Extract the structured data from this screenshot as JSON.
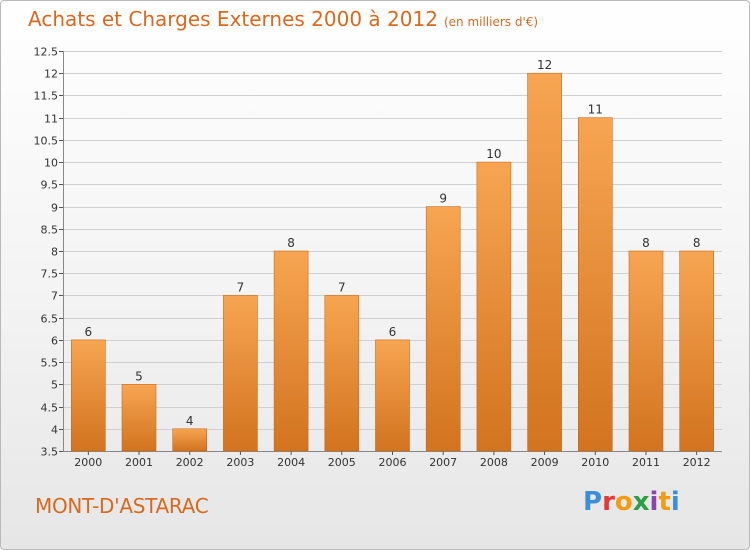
{
  "header": {
    "title": "Achats et Charges Externes 2000 à 2012",
    "unit": "(en milliers d'€)"
  },
  "footer": {
    "commune": "MONT-D'ASTARAC",
    "logo": {
      "letters": [
        "P",
        "r",
        "o",
        "x",
        "i",
        "t",
        "i"
      ],
      "colors": [
        "#3a8fd8",
        "#e53935",
        "#f39c12",
        "#2f9e44",
        "#8e44ad",
        "#f39c12",
        "#3a8fd8"
      ]
    }
  },
  "colors": {
    "bar_top": "#f7a552",
    "bar_bottom": "#d2731f",
    "bar_edge": "#c96a1c",
    "title": "#d8691e",
    "grid": "#d0d0d0",
    "axis_text": "#333333"
  },
  "chart_data": {
    "type": "bar",
    "title": "Achats et Charges Externes 2000 à 2012",
    "xlabel": "",
    "ylabel": "(en milliers d'€)",
    "categories": [
      "2000",
      "2001",
      "2002",
      "2003",
      "2004",
      "2005",
      "2006",
      "2007",
      "2008",
      "2009",
      "2010",
      "2011",
      "2012"
    ],
    "values": [
      6,
      5,
      4,
      7,
      8,
      7,
      6,
      9,
      10,
      12,
      11,
      8,
      8
    ],
    "ylim": [
      3.5,
      12.5
    ],
    "yticks": [
      3.5,
      4,
      4.5,
      5,
      5.5,
      6,
      6.5,
      7,
      7.5,
      8,
      8.5,
      9,
      9.5,
      10,
      10.5,
      11,
      11.5,
      12,
      12.5
    ],
    "ytick_labels": [
      "3.5",
      "4",
      "4.5",
      "5",
      "5.5",
      "6",
      "6.5",
      "7",
      "7.5",
      "8",
      "8.5",
      "9",
      "9.5",
      "10",
      "10.5",
      "11",
      "11.5",
      "12",
      "12.5"
    ],
    "grid": true
  }
}
